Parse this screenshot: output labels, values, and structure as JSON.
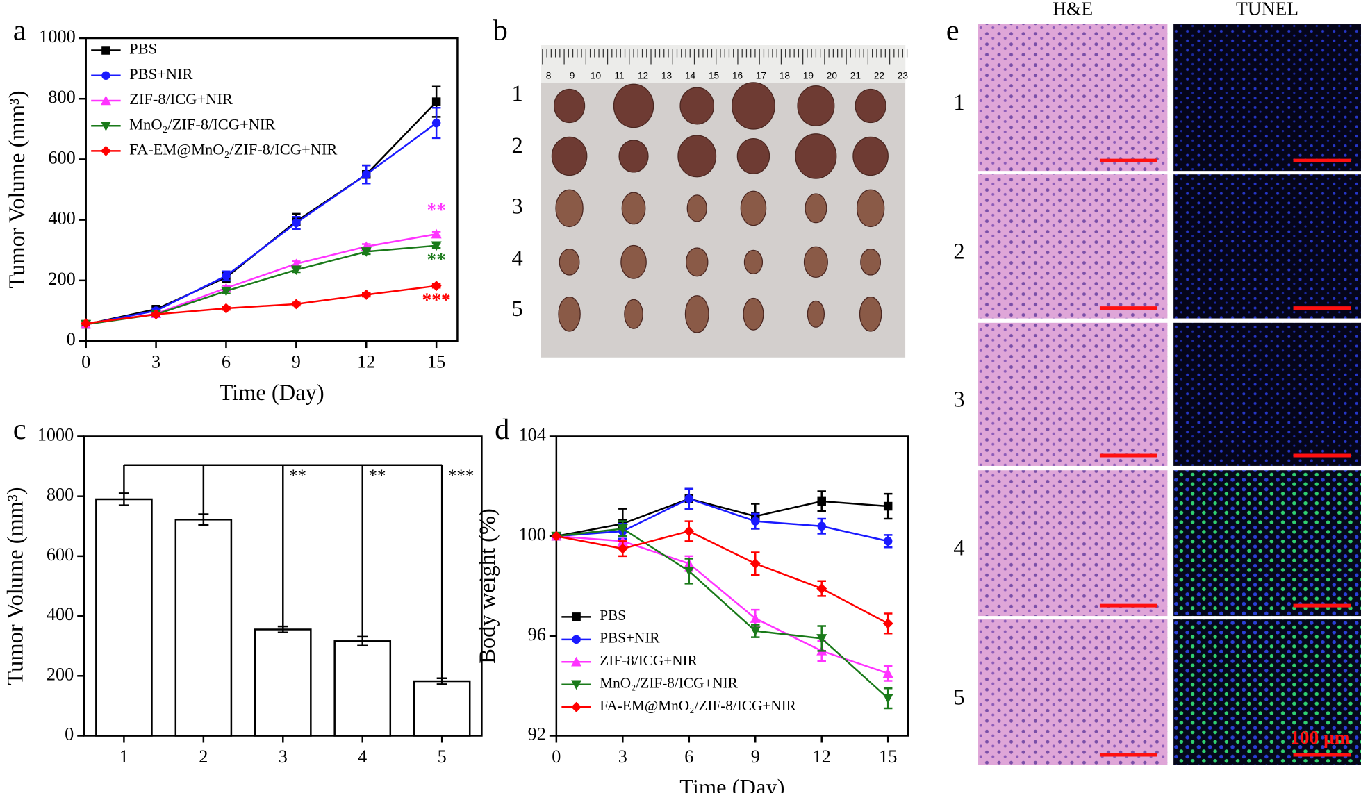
{
  "chart_data": [
    {
      "type": "line",
      "panel_label": "a",
      "x_label": "Time (Day)",
      "y_label": "Tumor Volume (mm³)",
      "x": [
        0,
        3,
        6,
        9,
        12,
        15
      ],
      "xlim": [
        0,
        15.9
      ],
      "xticks": [
        0,
        3,
        6,
        9,
        12,
        15
      ],
      "ylim": [
        0,
        1000
      ],
      "yticks": [
        0,
        200,
        400,
        600,
        800,
        1000
      ],
      "legend": "upper left",
      "series": [
        {
          "name": "PBS",
          "color": "#000000",
          "marker": "square",
          "values": [
            55,
            105,
            210,
            395,
            550,
            790
          ],
          "errors": [
            4,
            8,
            15,
            25,
            30,
            50
          ]
        },
        {
          "name": "PBS+NIR",
          "color": "#1a1aff",
          "marker": "circle",
          "values": [
            55,
            100,
            215,
            390,
            550,
            720
          ],
          "errors": [
            4,
            8,
            15,
            20,
            30,
            50
          ]
        },
        {
          "name": "ZIF-8/ICG+NIR",
          "color": "#ff33ff",
          "marker": "triangle-up",
          "values": [
            55,
            90,
            175,
            255,
            312,
            353
          ],
          "errors": [
            3,
            5,
            8,
            8,
            8,
            8
          ],
          "annotation": "**"
        },
        {
          "name": "MnO₂/ZIF-8/ICG+NIR",
          "color": "#1a7a1a",
          "marker": "triangle-down",
          "values": [
            55,
            88,
            165,
            235,
            295,
            315
          ],
          "errors": [
            3,
            5,
            8,
            8,
            8,
            8
          ],
          "annotation": "**"
        },
        {
          "name": "FA-EM@MnO₂/ZIF-8/ICG+NIR",
          "color": "#ff0000",
          "marker": "diamond",
          "values": [
            58,
            88,
            108,
            122,
            153,
            182
          ],
          "errors": [
            3,
            4,
            5,
            5,
            6,
            6
          ],
          "annotation": "***"
        }
      ]
    },
    {
      "type": "bar",
      "panel_label": "c",
      "y_label": "Tumor Volume (mm³)",
      "categories": [
        "1",
        "2",
        "3",
        "4",
        "5"
      ],
      "values": [
        790,
        722,
        355,
        316,
        182
      ],
      "errors": [
        20,
        18,
        10,
        15,
        10
      ],
      "color": "#ffffff",
      "ylim": [
        0,
        1000
      ],
      "yticks": [
        0,
        200,
        400,
        600,
        800,
        1000
      ],
      "significance_labels": [
        null,
        null,
        "**",
        "**",
        "***"
      ]
    },
    {
      "type": "line",
      "panel_label": "d",
      "x_label": "Time (Day)",
      "y_label": "Body weight (%)",
      "x": [
        0,
        3,
        6,
        9,
        12,
        15
      ],
      "xlim": [
        0,
        15.9
      ],
      "xticks": [
        0,
        3,
        6,
        9,
        12,
        15
      ],
      "ylim": [
        92,
        104
      ],
      "yticks": [
        92,
        96,
        100,
        104
      ],
      "legend": "lower left",
      "series": [
        {
          "name": "PBS",
          "color": "#000000",
          "marker": "square",
          "values": [
            100,
            100.5,
            101.5,
            100.8,
            101.4,
            101.2
          ],
          "errors": [
            0,
            0.6,
            0.4,
            0.5,
            0.4,
            0.5
          ]
        },
        {
          "name": "PBS+NIR",
          "color": "#1a1aff",
          "marker": "circle",
          "values": [
            100,
            100.2,
            101.5,
            100.6,
            100.4,
            99.8
          ],
          "errors": [
            0,
            0.3,
            0.4,
            0.3,
            0.3,
            0.25
          ]
        },
        {
          "name": "ZIF-8/ICG+NIR",
          "color": "#ff33ff",
          "marker": "triangle-up",
          "values": [
            100,
            99.8,
            98.9,
            96.7,
            95.4,
            94.5
          ],
          "errors": [
            0,
            0.2,
            0.3,
            0.35,
            0.4,
            0.3
          ]
        },
        {
          "name": "MnO₂/ZIF-8/ICG+NIR",
          "color": "#1a7a1a",
          "marker": "triangle-down",
          "values": [
            100,
            100.3,
            98.6,
            96.2,
            95.9,
            93.5
          ],
          "errors": [
            0,
            0.3,
            0.5,
            0.25,
            0.5,
            0.4
          ]
        },
        {
          "name": "FA-EM@MnO₂/ZIF-8/ICG+NIR",
          "color": "#ff0000",
          "marker": "diamond",
          "values": [
            100,
            99.5,
            100.2,
            98.9,
            97.9,
            96.5
          ],
          "errors": [
            0,
            0.3,
            0.4,
            0.45,
            0.3,
            0.4
          ]
        }
      ]
    }
  ],
  "photos": [
    {
      "panel_label": "b",
      "row_labels": [
        "1",
        "2",
        "3",
        "4",
        "5"
      ],
      "ruler_labels": [
        "8",
        "9",
        "10",
        "11",
        "12",
        "13",
        "14",
        "15",
        "16",
        "17",
        "18",
        "19",
        "20",
        "21",
        "22",
        "23"
      ]
    },
    {
      "panel_label": "e",
      "column_labels": [
        "H&E",
        "TUNEL"
      ],
      "row_labels": [
        "1",
        "2",
        "3",
        "4",
        "5"
      ],
      "scale_bar_label": "100 μm"
    }
  ]
}
